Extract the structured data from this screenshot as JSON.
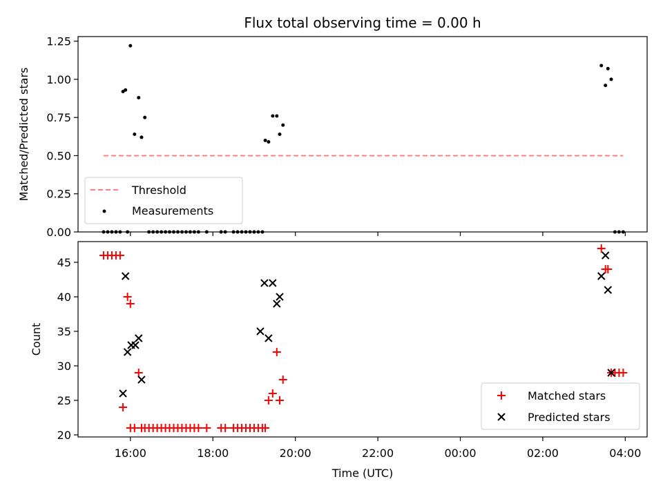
{
  "chart_data": [
    {
      "type": "scatter",
      "title": "Flux total observing time = 0.00 h",
      "xlabel": "",
      "ylabel": "Matched/Predicted stars",
      "x_ticks_hours": [
        16,
        18,
        20,
        22,
        24,
        26,
        28
      ],
      "ylim": [
        0,
        1.28
      ],
      "y_ticks": [
        0.0,
        0.25,
        0.5,
        0.75,
        1.0,
        1.25
      ],
      "y_tick_labels": [
        "0.00",
        "0.25",
        "0.50",
        "0.75",
        "1.00",
        "1.25"
      ],
      "legend_position": "lower-left",
      "series": [
        {
          "name": "Threshold",
          "kind": "line",
          "style": "dashed",
          "color": "#ff7f7f",
          "x": [
            15.35,
            27.95
          ],
          "y": [
            0.5,
            0.5
          ]
        },
        {
          "name": "Measurements",
          "kind": "points",
          "color": "#000000",
          "x": [
            15.35,
            15.45,
            15.55,
            15.65,
            15.75,
            15.82,
            15.88,
            15.93,
            16.0,
            16.1,
            16.2,
            16.27,
            16.35,
            16.45,
            16.55,
            16.65,
            16.75,
            16.85,
            16.95,
            17.05,
            17.15,
            17.25,
            17.35,
            17.45,
            17.55,
            17.65,
            17.85,
            18.2,
            18.3,
            18.5,
            18.6,
            18.7,
            18.8,
            18.9,
            19.0,
            19.1,
            19.2,
            19.27,
            19.35,
            19.45,
            19.55,
            19.62,
            19.7,
            27.42,
            27.52,
            27.58,
            27.66,
            27.75,
            27.85,
            27.95
          ],
          "y": [
            0,
            0,
            0,
            0,
            0,
            0.92,
            0.93,
            0,
            1.22,
            0.64,
            0.88,
            0.62,
            0.75,
            0,
            0,
            0,
            0,
            0,
            0,
            0,
            0,
            0,
            0,
            0,
            0,
            0,
            0,
            0,
            0,
            0,
            0,
            0,
            0,
            0,
            0,
            0,
            0,
            0.6,
            0.59,
            0.76,
            0.76,
            0.64,
            0.7,
            1.09,
            0.96,
            1.07,
            1.0,
            0,
            0,
            0
          ]
        }
      ]
    },
    {
      "type": "scatter",
      "xlabel": "Time (UTC)",
      "ylabel": "Count",
      "x_tick_labels": [
        "16:00",
        "18:00",
        "20:00",
        "22:00",
        "00:00",
        "02:00",
        "04:00"
      ],
      "x_ticks_hours": [
        16,
        18,
        20,
        22,
        24,
        26,
        28
      ],
      "xlim_hours": [
        14.73,
        28.53
      ],
      "ylim": [
        19.7,
        48.0
      ],
      "y_ticks": [
        20,
        25,
        30,
        35,
        40,
        45
      ],
      "y_tick_labels": [
        "20",
        "25",
        "30",
        "35",
        "40",
        "45"
      ],
      "legend_position": "lower-right",
      "series": [
        {
          "name": "Matched stars",
          "marker": "plus",
          "color": "#ff0000",
          "x": [
            15.35,
            15.45,
            15.55,
            15.65,
            15.75,
            15.82,
            15.93,
            16.0,
            16.0,
            16.1,
            16.2,
            16.27,
            16.35,
            16.45,
            16.55,
            16.65,
            16.75,
            16.85,
            16.95,
            17.05,
            17.15,
            17.25,
            17.35,
            17.45,
            17.55,
            17.65,
            17.85,
            18.2,
            18.3,
            18.5,
            18.6,
            18.7,
            18.8,
            18.9,
            19.0,
            19.1,
            19.2,
            19.27,
            19.35,
            19.45,
            19.55,
            19.62,
            19.7,
            27.42,
            27.52,
            27.58,
            27.66,
            27.75,
            27.85,
            27.95
          ],
          "y": [
            46,
            46,
            46,
            46,
            46,
            24,
            40,
            39,
            21,
            21,
            29,
            21,
            21,
            21,
            21,
            21,
            21,
            21,
            21,
            21,
            21,
            21,
            21,
            21,
            21,
            21,
            21,
            21,
            21,
            21,
            21,
            21,
            21,
            21,
            21,
            21,
            21,
            21,
            25,
            26,
            32,
            25,
            28,
            47,
            44,
            44,
            29,
            29,
            29,
            29
          ]
        },
        {
          "name": "Predicted stars",
          "marker": "x",
          "color": "#000000",
          "x": [
            15.82,
            15.88,
            15.93,
            16.02,
            16.12,
            16.2,
            16.27,
            19.15,
            19.25,
            19.35,
            19.45,
            19.55,
            19.62,
            27.42,
            27.52,
            27.58,
            27.66
          ],
          "y": [
            26,
            43,
            32,
            33,
            33,
            34,
            28,
            35,
            42,
            34,
            42,
            39,
            40,
            43,
            46,
            41,
            29
          ]
        }
      ]
    }
  ]
}
